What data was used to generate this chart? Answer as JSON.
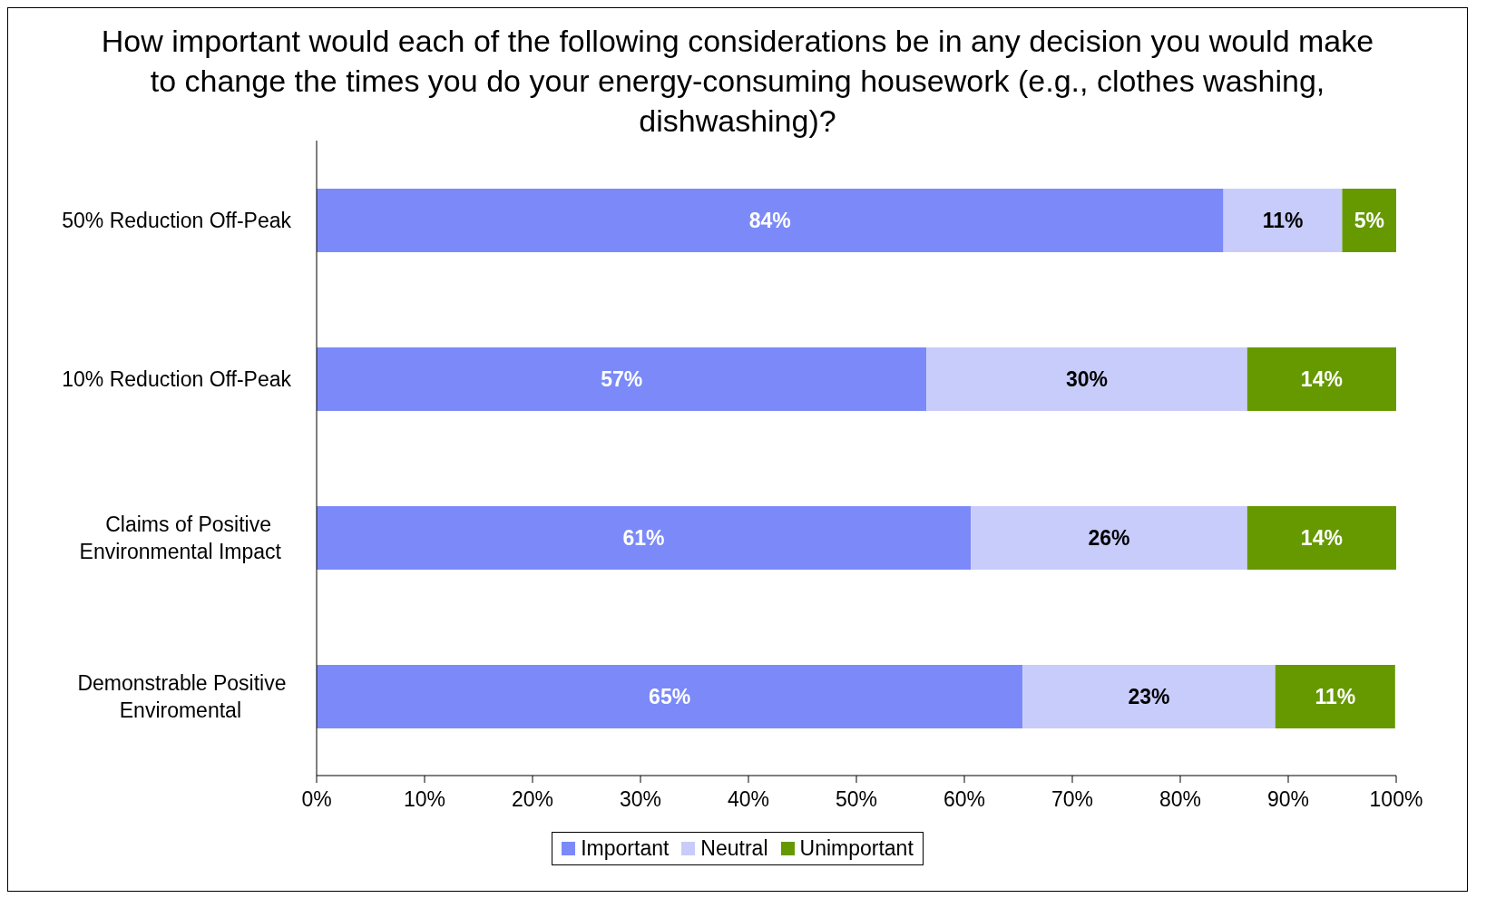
{
  "chart_data": {
    "type": "bar",
    "orientation": "horizontal",
    "stacked": true,
    "title": "How important would each of the following considerations be in any decision you would make to change the times you do your energy-consuming housework (e.g., clothes washing, dishwashing)?",
    "categories": [
      "50% Reduction Off-Peak",
      "10% Reduction Off-Peak",
      "Claims of Positive Environmental Impact",
      "Demonstrable Positive Enviromental"
    ],
    "series": [
      {
        "name": "Important",
        "color": "#7b8af8",
        "values": [
          84,
          56.5,
          60.6,
          65.4
        ],
        "value_labels": [
          "84%",
          "57%",
          "61%",
          "65%"
        ]
      },
      {
        "name": "Neutral",
        "color": "#c8ccfa",
        "values": [
          11,
          29.7,
          25.6,
          23.4
        ],
        "value_labels": [
          "11%",
          "30%",
          "26%",
          "23%"
        ]
      },
      {
        "name": "Unimportant",
        "color": "#669900",
        "values": [
          5,
          13.8,
          13.8,
          11.1
        ],
        "value_labels": [
          "5%",
          "14%",
          "14%",
          "11%"
        ]
      }
    ],
    "xlim": [
      0,
      100
    ],
    "xticks": [
      {
        "value": 0,
        "label": "0%"
      },
      {
        "value": 10,
        "label": "10%"
      },
      {
        "value": 20,
        "label": "20%"
      },
      {
        "value": 30,
        "label": "30%"
      },
      {
        "value": 40,
        "label": "40%"
      },
      {
        "value": 50,
        "label": "50%"
      },
      {
        "value": 60,
        "label": "60%"
      },
      {
        "value": 70,
        "label": "70%"
      },
      {
        "value": 80,
        "label": "80%"
      },
      {
        "value": 90,
        "label": "90%"
      },
      {
        "value": 100,
        "label": "100%"
      }
    ],
    "grid": false,
    "legend": "bottom"
  }
}
